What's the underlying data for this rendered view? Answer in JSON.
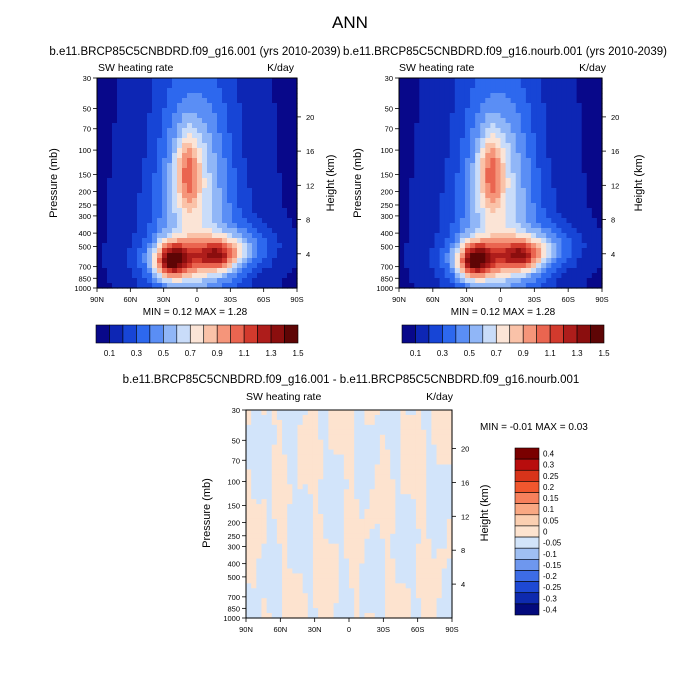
{
  "page_title": "ANN",
  "panels": [
    {
      "title": "b.e11.BRCP85C5CNBDRD.f09_g16.001 (yrs 2010-2039)",
      "left_label": "SW heating rate",
      "right_label": "K/day",
      "stats": "MIN =   0.12  MAX =   1.28",
      "ylabel": "Pressure (mb)",
      "y2label": "Height (km)"
    },
    {
      "title": "b.e11.BRCP85C5CNBDRD.f09_g16.nourb.001 (yrs 2010-2039)",
      "left_label": "SW heating rate",
      "right_label": "K/day",
      "stats": "MIN =   0.12  MAX =   1.28",
      "ylabel": "Pressure (mb)",
      "y2label": "Height (km)"
    },
    {
      "title": "b.e11.BRCP85C5CNBDRD.f09_g16.001 - b.e11.BRCP85C5CNBDRD.f09_g16.nourb.001",
      "left_label": "SW heating rate",
      "right_label": "K/day",
      "stats": "MIN =  -0.01  MAX =   0.03",
      "ylabel": "Pressure (mb)",
      "y2label": "Height (km)"
    }
  ],
  "chart_data": [
    {
      "type": "heatmap",
      "title": "b.e11.BRCP85C5CNBDRD.f09_g16.001 (yrs 2010-2039)",
      "variable": "SW heating rate",
      "units": "K/day",
      "xlabel": "",
      "ylabel": "Pressure (mb)",
      "y2label": "Height (km)",
      "x_ticks": [
        "90N",
        "60N",
        "30N",
        "0",
        "30S",
        "60S",
        "90S"
      ],
      "y_ticks": [
        "30",
        "50",
        "70",
        "100",
        "150",
        "200",
        "250",
        "300",
        "400",
        "500",
        "700",
        "850",
        "1000"
      ],
      "y2_ticks": [
        "20",
        "16",
        "12",
        "8",
        "4"
      ],
      "xlim": [
        90,
        -90
      ],
      "ylim": [
        1000,
        30
      ],
      "min": 0.12,
      "max": 1.28,
      "colorbar": {
        "orientation": "horizontal",
        "levels": [
          0.1,
          0.2,
          0.3,
          0.4,
          0.5,
          0.6,
          0.7,
          0.8,
          0.9,
          1.0,
          1.1,
          1.2,
          1.3,
          1.4,
          1.5
        ],
        "labels": [
          "0.1",
          "0.3",
          "0.5",
          "0.7",
          "0.9",
          "1.1",
          "1.3",
          "1.5"
        ]
      }
    },
    {
      "type": "heatmap",
      "title": "b.e11.BRCP85C5CNBDRD.f09_g16.nourb.001 (yrs 2010-2039)",
      "variable": "SW heating rate",
      "units": "K/day",
      "xlabel": "",
      "ylabel": "Pressure (mb)",
      "y2label": "Height (km)",
      "x_ticks": [
        "90N",
        "60N",
        "30N",
        "0",
        "30S",
        "60S",
        "90S"
      ],
      "y_ticks": [
        "30",
        "50",
        "70",
        "100",
        "150",
        "200",
        "250",
        "300",
        "400",
        "500",
        "700",
        "850",
        "1000"
      ],
      "y2_ticks": [
        "20",
        "16",
        "12",
        "8",
        "4"
      ],
      "xlim": [
        90,
        -90
      ],
      "ylim": [
        1000,
        30
      ],
      "min": 0.12,
      "max": 1.28,
      "colorbar": {
        "orientation": "horizontal",
        "levels": [
          0.1,
          0.2,
          0.3,
          0.4,
          0.5,
          0.6,
          0.7,
          0.8,
          0.9,
          1.0,
          1.1,
          1.2,
          1.3,
          1.4,
          1.5
        ],
        "labels": [
          "0.1",
          "0.3",
          "0.5",
          "0.7",
          "0.9",
          "1.1",
          "1.3",
          "1.5"
        ]
      }
    },
    {
      "type": "heatmap",
      "title": "b.e11.BRCP85C5CNBDRD.f09_g16.001 - b.e11.BRCP85C5CNBDRD.f09_g16.nourb.001",
      "variable": "SW heating rate",
      "units": "K/day",
      "xlabel": "",
      "ylabel": "Pressure (mb)",
      "y2label": "Height (km)",
      "x_ticks": [
        "90N",
        "60N",
        "30N",
        "0",
        "30S",
        "60S",
        "90S"
      ],
      "y_ticks": [
        "30",
        "50",
        "70",
        "100",
        "150",
        "200",
        "250",
        "300",
        "400",
        "500",
        "700",
        "850",
        "1000"
      ],
      "y2_ticks": [
        "20",
        "16",
        "12",
        "8",
        "4"
      ],
      "xlim": [
        90,
        -90
      ],
      "ylim": [
        1000,
        30
      ],
      "min": -0.01,
      "max": 0.03,
      "colorbar": {
        "orientation": "vertical",
        "levels": [
          0.4,
          0.3,
          0.25,
          0.2,
          0.15,
          0.1,
          0.05,
          0,
          -0.05,
          -0.1,
          -0.15,
          -0.2,
          -0.25,
          -0.3,
          -0.4
        ],
        "labels": [
          "0.4",
          "0.3",
          "0.25",
          "0.2",
          "0.15",
          "0.1",
          "0.05",
          "0",
          "-0.05",
          "-0.1",
          "-0.15",
          "-0.2",
          "-0.25",
          "-0.3",
          "-0.4"
        ]
      }
    }
  ],
  "colors": {
    "abs_scale": [
      "#08088a",
      "#0d26b4",
      "#1745d6",
      "#2d68ee",
      "#5a8ef5",
      "#90b6f7",
      "#c9dcf9",
      "#fbe4d6",
      "#fac2a8",
      "#f5957a",
      "#ea6550",
      "#d23a2d",
      "#ae1d1b",
      "#8b0e0e",
      "#5e0505"
    ],
    "diff_scale": [
      "#7a0000",
      "#b80d0d",
      "#d8341a",
      "#f0572e",
      "#f6805c",
      "#f9a883",
      "#fbcfb1",
      "#fde3cf",
      "#d2e4fa",
      "#9fbff3",
      "#6e97ee",
      "#3d6ce6",
      "#1e49d4",
      "#0e2aae",
      "#030a7c"
    ],
    "diff_pos": "#fde3cf",
    "diff_neg": "#d2e4fa"
  }
}
